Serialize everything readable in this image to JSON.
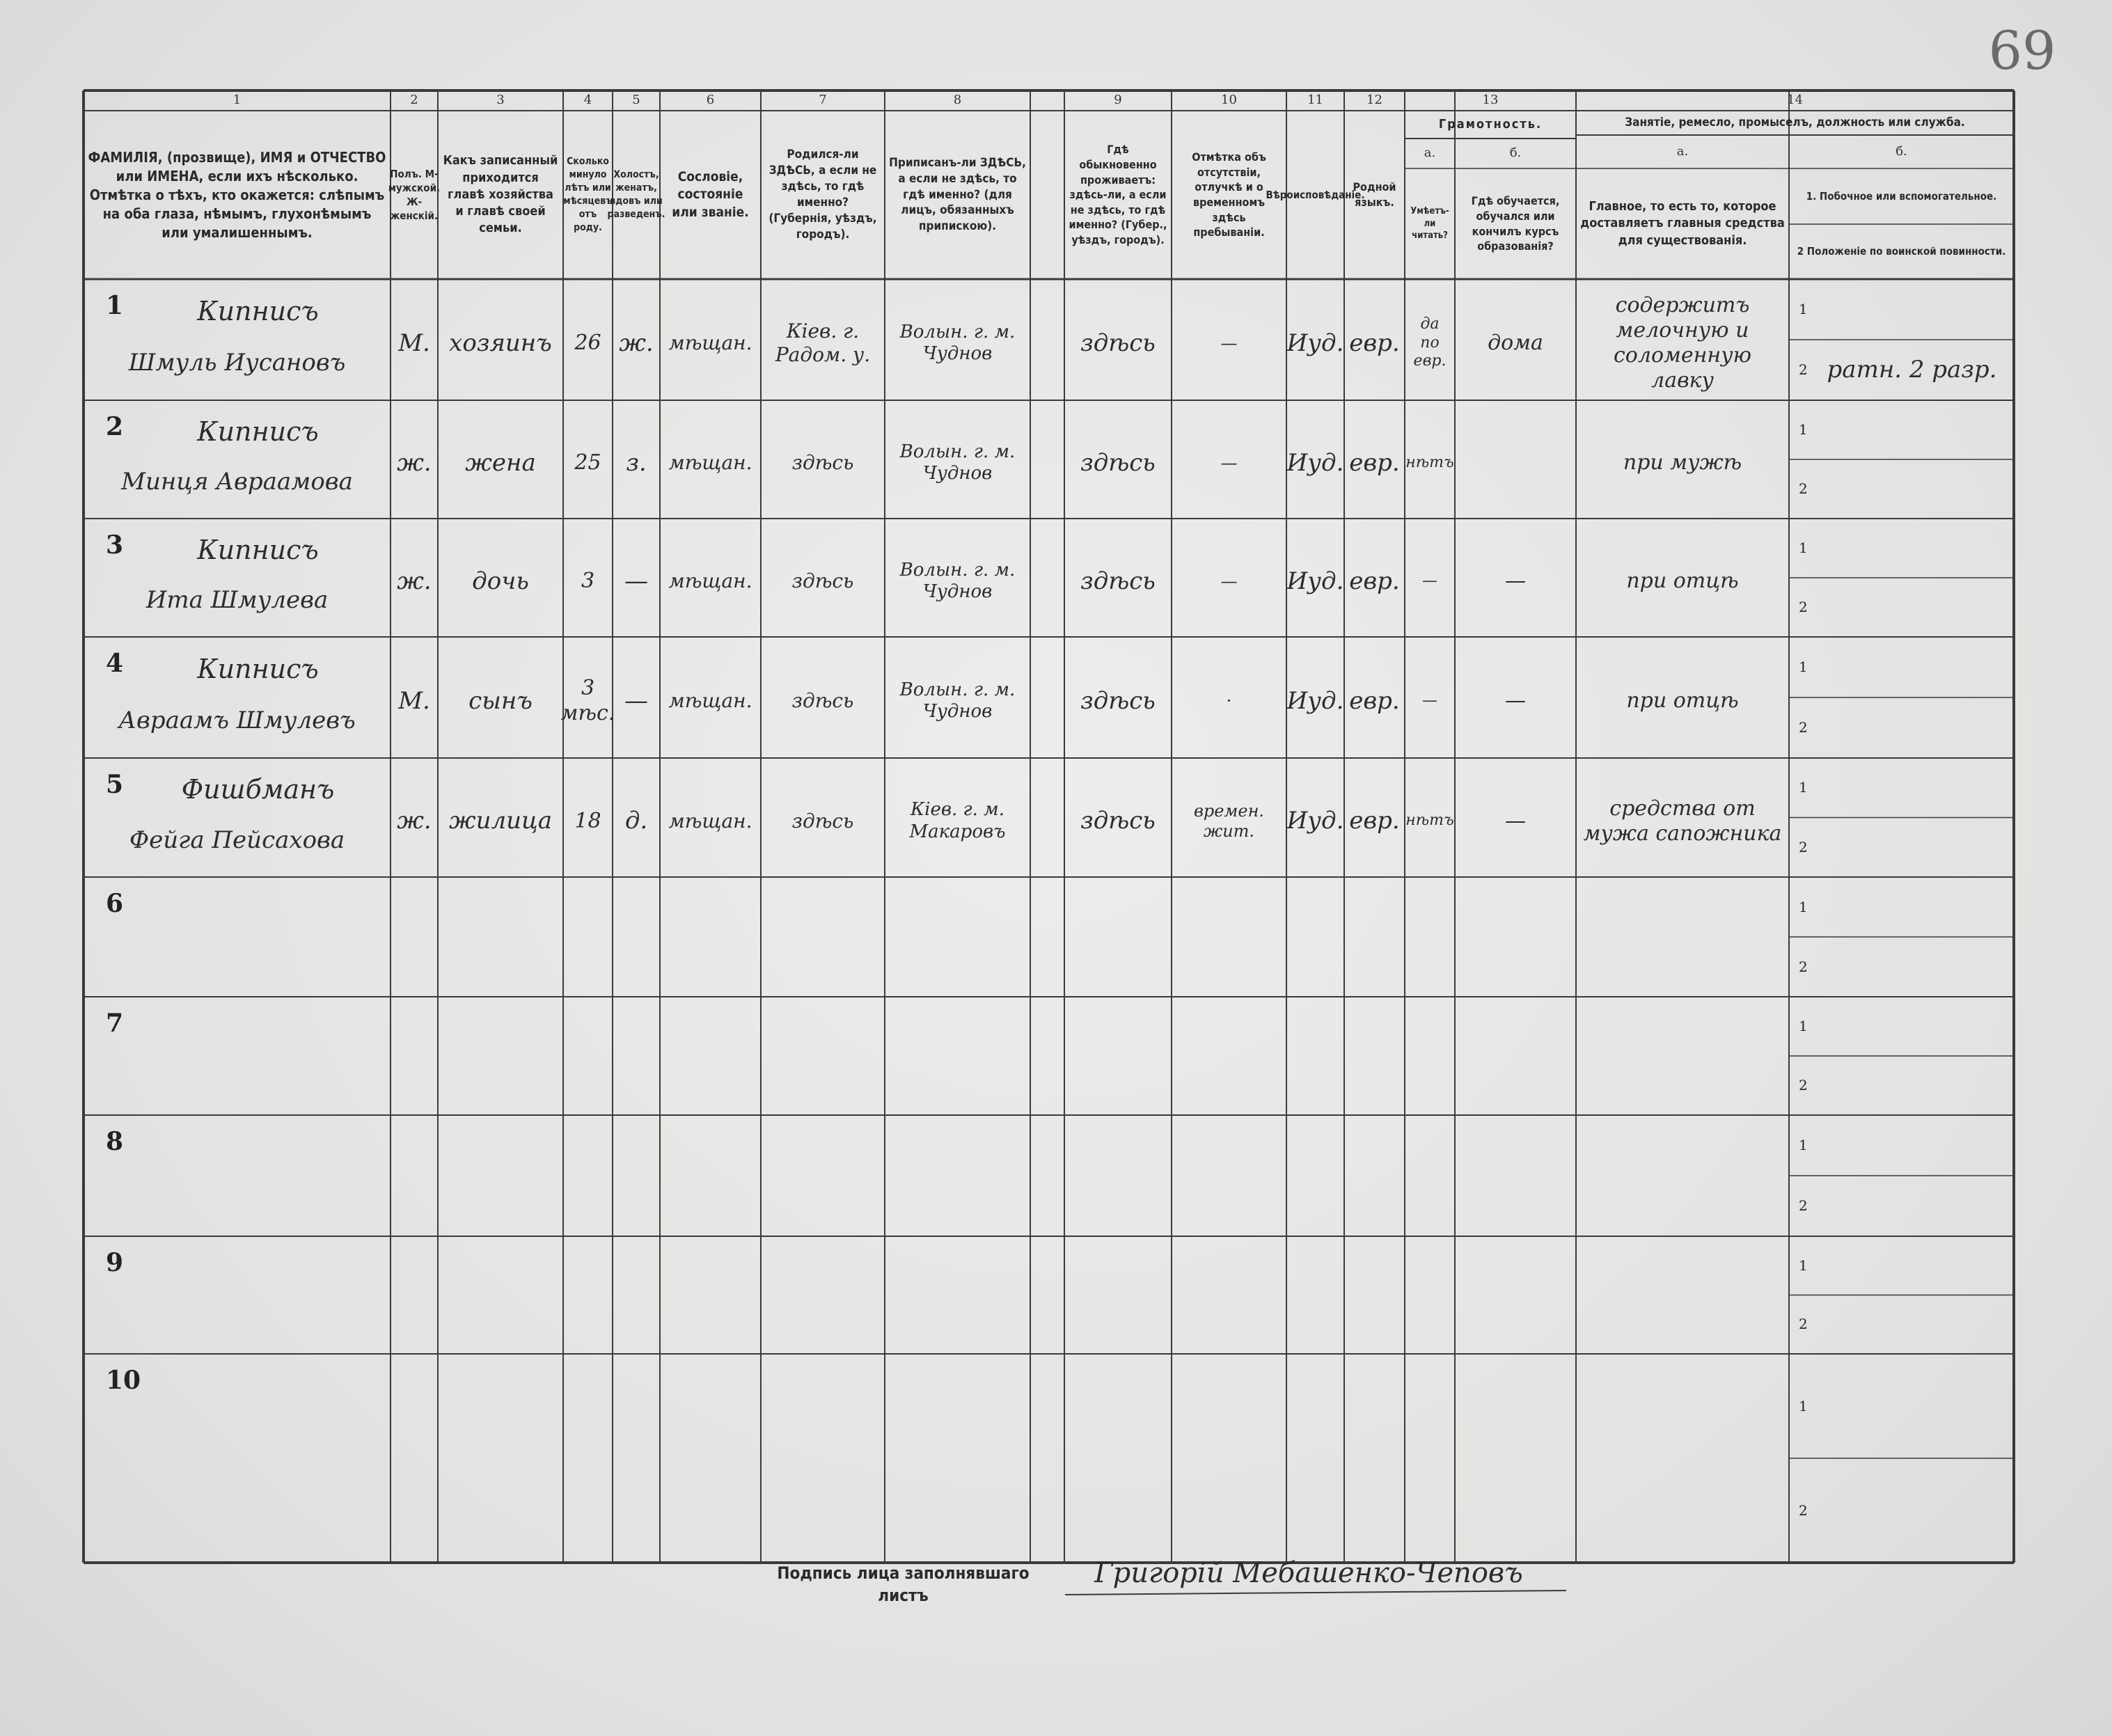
{
  "page_number": "69",
  "columns": [
    {
      "number": "1",
      "header": "ФАМИЛІЯ, (прозвище), ИМЯ и ОТЧЕСТВО или ИМЕНА, если ихъ нѣсколько. Отмѣтка о тѣхъ, кто окажется: слѣпымъ на оба глаза, нѣмымъ, глухонѣмымъ или умалишеннымъ."
    },
    {
      "number": "2",
      "header": "Полъ. М-мужской. Ж-женскій."
    },
    {
      "number": "3",
      "header": "Какъ записанный приходится главѣ хозяйства и главѣ своей семьи."
    },
    {
      "number": "4",
      "header": "Сколько минуло лѣтъ или мѣсяцевъ отъ роду."
    },
    {
      "number": "5",
      "header": "Холостъ, женатъ, вдовъ или разведенъ."
    },
    {
      "number": "6",
      "header": "Сословіе, состояніе или званіе."
    },
    {
      "number": "7",
      "header": "Родился-ли ЗДѢСЬ, а если не здѣсь, то гдѣ именно? (Губернія, уѣздъ, городъ)."
    },
    {
      "number": "8",
      "header": "Приписанъ-ли ЗДѢСЬ, а если не здѣсь, то гдѣ именно? (для лицъ, обязанныхъ припискою)."
    },
    {
      "number": "9",
      "header": "Гдѣ обыкновенно проживаетъ: здѣсь-ли, а если не здѣсь, то гдѣ именно? (Губер., уѣздъ, городъ)."
    },
    {
      "number": "10",
      "header": "Отмѣтка объ отсутствіи, отлучкѣ и о временномъ здѣсь пребываніи."
    },
    {
      "number": "11",
      "header": "Вѣроисповѣданіе."
    },
    {
      "number": "12",
      "header": "Родной языкъ."
    }
  ],
  "literacy": {
    "number": "13",
    "title": "Грамотность.",
    "a": {
      "letter": "а.",
      "header": "Умѣетъ-ли читать?"
    },
    "b": {
      "letter": "б.",
      "header": "Гдѣ обучается, обучался или кончилъ курсъ образованія?"
    }
  },
  "occupation": {
    "number": "14",
    "title": "Занятіе, ремесло, промыселъ, должность или служба.",
    "a": {
      "letter": "а.",
      "header": "Главное, то есть то, которое доставляетъ главныя средства для существованія."
    },
    "b": {
      "letter": "б.",
      "items": [
        "1. Побочное или вспомогательное.",
        "2 Положеніе по воинской повинности."
      ]
    }
  },
  "subrow_labels": [
    "1",
    "2"
  ],
  "rows": [
    {
      "number": "1",
      "surname": "Кипнисъ",
      "given_names": "Шмуль Иусановъ",
      "sex": "М.",
      "relation": "хозяинъ",
      "age": "26",
      "marital": "ж.",
      "estate": "мѣщан.",
      "birthplace": "Кiев. г. Радом. у.",
      "registration": "Волын. г. м. Чуднов",
      "residence": "здѣсь",
      "absence": "—",
      "religion": "Иуд.",
      "language": "евр.",
      "literate": "да по евр.",
      "education": "дома",
      "occupation": "содержитъ мелочную и соломенную лавку",
      "military": "ратн. 2 разр."
    },
    {
      "number": "2",
      "surname": "Кипнисъ",
      "given_names": "Минця Авраамова",
      "sex": "ж.",
      "relation": "жена",
      "age": "25",
      "marital": "з.",
      "estate": "мѣщан.",
      "birthplace": "здѣсь",
      "registration": "Волын. г. м. Чуднов",
      "residence": "здѣсь",
      "absence": "—",
      "religion": "Иуд.",
      "language": "евр.",
      "literate": "нѣтъ",
      "occupation": "при мужѣ"
    },
    {
      "number": "3",
      "surname": "Кипнисъ",
      "given_names": "Ита Шмулева",
      "sex": "ж.",
      "relation": "дочь",
      "age": "3",
      "marital": "—",
      "estate": "мѣщан.",
      "birthplace": "здѣсь",
      "registration": "Волын. г. м. Чуднов",
      "residence": "здѣсь",
      "absence": "—",
      "religion": "Иуд.",
      "language": "евр.",
      "literate": "—",
      "education": "—",
      "occupation": "при отцѣ"
    },
    {
      "number": "4",
      "surname": "Кипнисъ",
      "given_names": "Авраамъ Шмулевъ",
      "sex": "М.",
      "relation": "сынъ",
      "age": "3 мѣс.",
      "marital": "—",
      "estate": "мѣщан.",
      "birthplace": "здѣсь",
      "registration": "Волын. г. м. Чуднов",
      "residence": "здѣсь",
      "absence": "·",
      "religion": "Иуд.",
      "language": "евр.",
      "literate": "—",
      "education": "—",
      "occupation": "при отцѣ"
    },
    {
      "number": "5",
      "surname": "Фишбманъ",
      "given_names": "Фейга Пейсахова",
      "sex": "ж.",
      "relation": "жилица",
      "age": "18",
      "marital": "д.",
      "estate": "мѣщан.",
      "birthplace": "здѣсь",
      "registration": "Кiев. г. м. Макаровъ",
      "residence": "здѣсь",
      "absence": "времен. жит.",
      "religion": "Иуд.",
      "language": "евр.",
      "literate": "нѣтъ",
      "education": "—",
      "occupation": "средства от мужа сапожника"
    },
    {
      "number": "6"
    },
    {
      "number": "7"
    },
    {
      "number": "8"
    },
    {
      "number": "9"
    },
    {
      "number": "10"
    }
  ],
  "signature_label": "Подпись лица заполнявшаго листъ",
  "signature": "Григорій Мебашенко-Чеповъ"
}
